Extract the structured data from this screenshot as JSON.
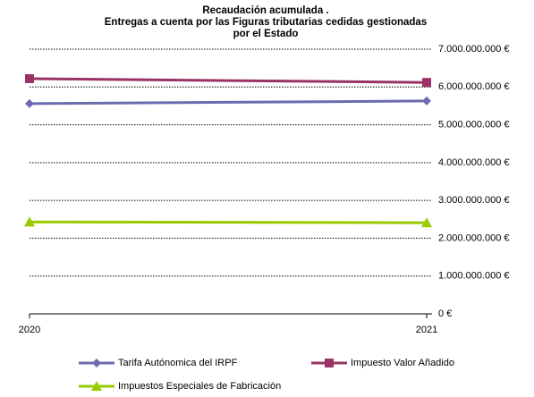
{
  "chart_data": {
    "type": "line",
    "title": [
      "Recaudación acumulada .",
      "Entregas a cuenta por las Figuras tributarias cedidas gestionadas",
      "por el Estado"
    ],
    "categories": [
      "2020",
      "2021"
    ],
    "series": [
      {
        "name": "Tarifa Autónomica del IRPF",
        "color": "#6b6bb0",
        "marker": "diamond",
        "values": [
          5560000000,
          5630000000
        ]
      },
      {
        "name": "Impuesto Valor Añadido",
        "color": "#993366",
        "marker": "square",
        "values": [
          6220000000,
          6120000000
        ]
      },
      {
        "name": "Impuestos Especiales de Fabricación",
        "color": "#99cc00",
        "marker": "triangle",
        "values": [
          2430000000,
          2410000000
        ]
      }
    ],
    "ylim": [
      0,
      7000000000
    ],
    "yticks": [
      {
        "value": 0,
        "label": "0 €"
      },
      {
        "value": 1000000000,
        "label": "1.000.000.000 €"
      },
      {
        "value": 2000000000,
        "label": "2.000.000.000 €"
      },
      {
        "value": 3000000000,
        "label": "3.000.000.000 €"
      },
      {
        "value": 4000000000,
        "label": "4.000.000.000 €"
      },
      {
        "value": 5000000000,
        "label": "5.000.000.000 €"
      },
      {
        "value": 6000000000,
        "label": "6.000.000.000 €"
      },
      {
        "value": 7000000000,
        "label": "7.000.000.000 €"
      }
    ],
    "y_axis_side": "right",
    "grid": true,
    "legend": "bottom"
  }
}
